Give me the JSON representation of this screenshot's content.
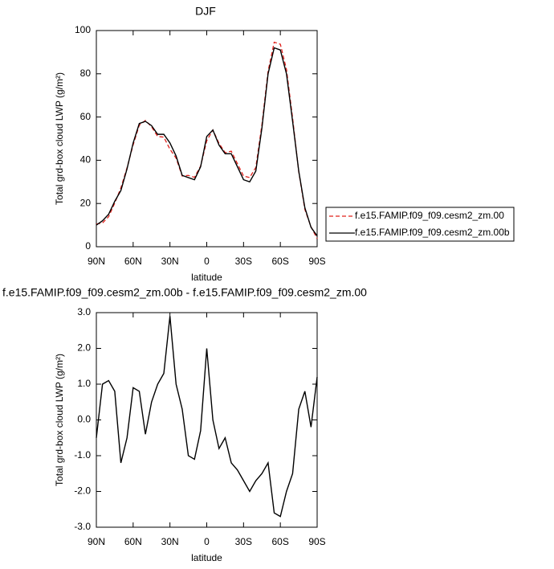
{
  "chart_data": [
    {
      "type": "line",
      "title": "DJF",
      "xlabel": "latitude",
      "ylabel": "Total grd-box cloud LWP (g/m²)",
      "x": [
        90,
        85,
        80,
        75,
        70,
        65,
        60,
        55,
        50,
        45,
        40,
        35,
        30,
        25,
        20,
        15,
        10,
        5,
        0,
        -5,
        -10,
        -15,
        -20,
        -25,
        -30,
        -35,
        -40,
        -45,
        -50,
        -55,
        -60,
        -65,
        -70,
        -75,
        -80,
        -85,
        -90
      ],
      "series": [
        {
          "name": "f.e15.FAMIP.f09_f09.cesm2_zm.00",
          "color": "#e0201b",
          "dash": true,
          "values": [
            10.5,
            11,
            13.9,
            20.2,
            27.2,
            36.5,
            47.1,
            56.2,
            58.4,
            55.5,
            51,
            50.7,
            45.1,
            41,
            32.7,
            33,
            32.1,
            37.3,
            49,
            54,
            47.8,
            43.5,
            44.2,
            38.4,
            32.7,
            32,
            36.7,
            56.5,
            81.2,
            94.6,
            93.7,
            82,
            59.5,
            34.7,
            17.2,
            9.2,
            3.8
          ]
        },
        {
          "name": "f.e15.FAMIP.f09_f09.cesm2_zm.00b",
          "color": "#000000",
          "dash": false,
          "values": [
            10,
            12,
            15,
            21,
            26,
            36,
            48,
            57,
            58,
            56,
            52,
            52,
            48,
            42,
            33,
            32,
            31,
            37,
            51,
            54,
            47,
            43,
            43,
            37,
            31,
            30,
            35,
            55,
            80,
            92,
            91,
            80,
            58,
            35,
            18,
            9,
            5
          ]
        }
      ],
      "xlim": [
        90,
        -90
      ],
      "xticks": [
        {
          "value": 90,
          "label": "90N"
        },
        {
          "value": 60,
          "label": "60N"
        },
        {
          "value": 30,
          "label": "30N"
        },
        0,
        {
          "value": -30,
          "label": "30S"
        },
        {
          "value": -60,
          "label": "60S"
        },
        {
          "value": -90,
          "label": "90S"
        }
      ],
      "ylim": [
        0,
        100
      ],
      "yticks": [
        0,
        20,
        40,
        60,
        80,
        100
      ],
      "legend": "right"
    },
    {
      "type": "line",
      "title": "f.e15.FAMIP.f09_f09.cesm2_zm.00b - f.e15.FAMIP.f09_f09.cesm2_zm.00",
      "xlabel": "latitude",
      "ylabel": "Total grd-box cloud LWP (g/m²)",
      "x": [
        90,
        85,
        80,
        75,
        70,
        65,
        60,
        55,
        50,
        45,
        40,
        35,
        30,
        25,
        20,
        15,
        10,
        5,
        0,
        -5,
        -10,
        -15,
        -20,
        -25,
        -30,
        -35,
        -40,
        -45,
        -50,
        -55,
        -60,
        -65,
        -70,
        -75,
        -80,
        -85,
        -90
      ],
      "series": [
        {
          "color": "#000000",
          "dash": false,
          "values": [
            -0.5,
            1.0,
            1.1,
            0.8,
            -1.2,
            -0.5,
            0.9,
            0.8,
            -0.4,
            0.5,
            1.0,
            1.3,
            2.9,
            1.0,
            0.3,
            -1.0,
            -1.1,
            -0.3,
            2.0,
            0,
            -0.8,
            -0.5,
            -1.2,
            -1.4,
            -1.7,
            -2.0,
            -1.7,
            -1.5,
            -1.2,
            -2.6,
            -2.7,
            -2.0,
            -1.5,
            0.3,
            0.8,
            -0.2,
            1.2
          ]
        }
      ],
      "xlim": [
        90,
        -90
      ],
      "xticks": [
        {
          "value": 90,
          "label": "90N"
        },
        {
          "value": 60,
          "label": "60N"
        },
        {
          "value": 30,
          "label": "30N"
        },
        0,
        {
          "value": -30,
          "label": "30S"
        },
        {
          "value": -60,
          "label": "60S"
        },
        {
          "value": -90,
          "label": "90S"
        }
      ],
      "ylim": [
        -3,
        3
      ],
      "yticks": [
        {
          "value": -3,
          "label": "-3.0"
        },
        {
          "value": -2,
          "label": "-2.0"
        },
        {
          "value": -1,
          "label": "-1.0"
        },
        {
          "value": 0,
          "label": "0.0"
        },
        {
          "value": 1,
          "label": "1.0"
        },
        {
          "value": 2,
          "label": "2.0"
        },
        {
          "value": 3,
          "label": "3.0"
        }
      ]
    }
  ]
}
